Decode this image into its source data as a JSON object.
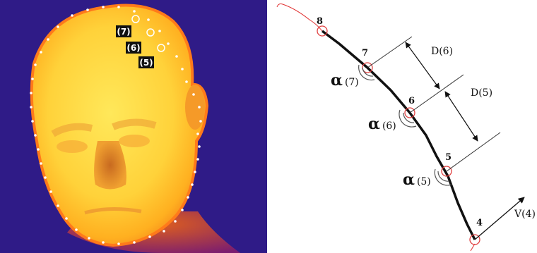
{
  "thermal_image": {
    "badges": [
      "(7)",
      "(6)",
      "(5)"
    ]
  },
  "diagram": {
    "points": [
      "8",
      "7",
      "6",
      "5",
      "4"
    ],
    "distances": [
      "D(6)",
      "D(5)"
    ],
    "angles": [
      {
        "symbol": "α",
        "index": "(7)"
      },
      {
        "symbol": "α",
        "index": "(6)"
      },
      {
        "symbol": "α",
        "index": "(5)"
      }
    ],
    "vector": "V(4)",
    "colors": {
      "curve": "#111111",
      "contour": "#e03030",
      "point_marker": "#e04040",
      "background_dark": "#2a1a80"
    }
  }
}
